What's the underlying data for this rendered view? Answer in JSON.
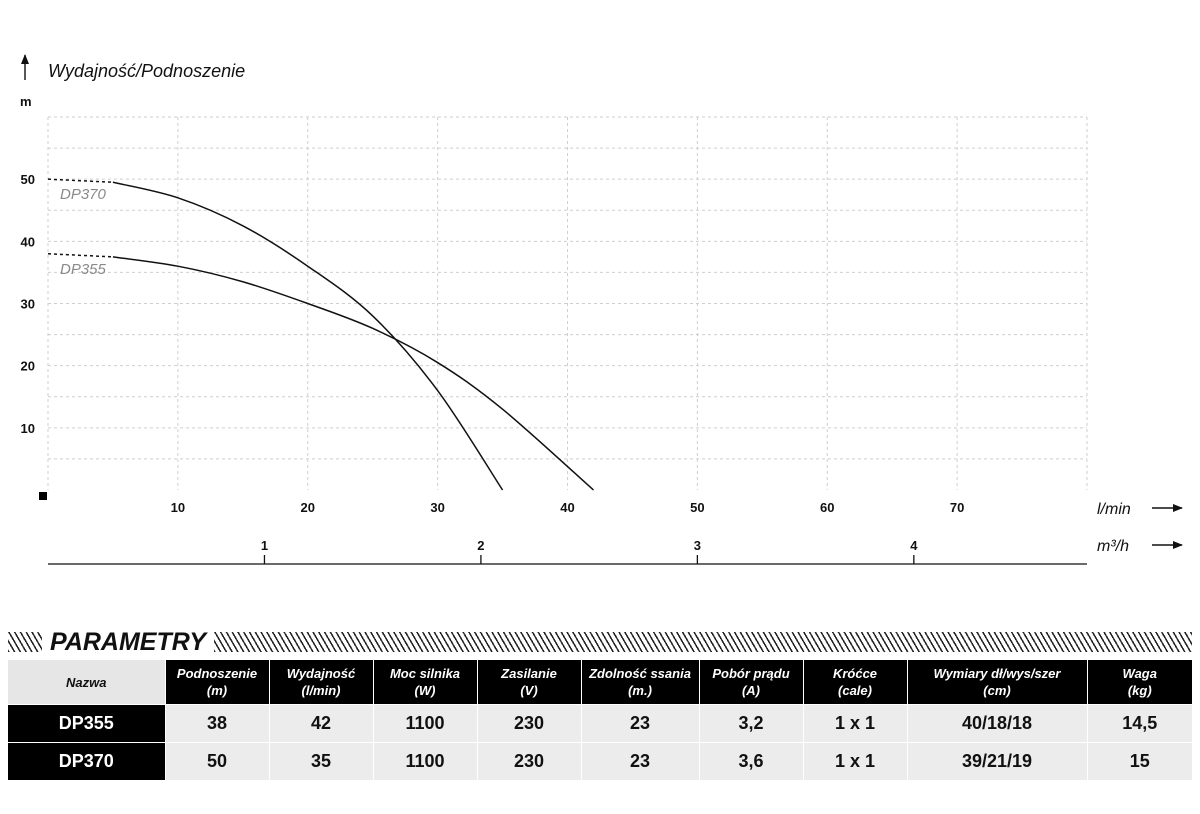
{
  "chart_data": {
    "type": "line",
    "title": "Wydajność/Podnoszenie",
    "ylabel": "m",
    "xlabel": "l/min",
    "x2label": "m³/h",
    "xlim": [
      0,
      80
    ],
    "ylim": [
      0,
      60
    ],
    "x_ticks": [
      10,
      20,
      30,
      40,
      50,
      60,
      70
    ],
    "y_ticks": [
      10,
      20,
      30,
      40,
      50
    ],
    "x2_ticks": [
      1,
      2,
      3,
      4
    ],
    "grid": true,
    "series": [
      {
        "name": "DP370",
        "points": [
          [
            0,
            50
          ],
          [
            5,
            49.5
          ],
          [
            10,
            47
          ],
          [
            15,
            42.5
          ],
          [
            20,
            36
          ],
          [
            25,
            28
          ],
          [
            30,
            16
          ],
          [
            35,
            0
          ]
        ]
      },
      {
        "name": "DP355",
        "points": [
          [
            0,
            38
          ],
          [
            5,
            37.5
          ],
          [
            10,
            36
          ],
          [
            15,
            33.5
          ],
          [
            20,
            30
          ],
          [
            25,
            26
          ],
          [
            30,
            20.5
          ],
          [
            35,
            13
          ],
          [
            42,
            0
          ]
        ]
      }
    ]
  },
  "params": {
    "title": "PARAMETRY",
    "headers": [
      {
        "l1": "Nazwa",
        "l2": ""
      },
      {
        "l1": "Podnoszenie",
        "l2": "(m)"
      },
      {
        "l1": "Wydajność",
        "l2": "(l/min)"
      },
      {
        "l1": "Moc silnika",
        "l2": "(W)"
      },
      {
        "l1": "Zasilanie",
        "l2": "(V)"
      },
      {
        "l1": "Zdolność ssania",
        "l2": "(m.)"
      },
      {
        "l1": "Pobór prądu",
        "l2": "(A)"
      },
      {
        "l1": "Króćce",
        "l2": "(cale)"
      },
      {
        "l1": "Wymiary dł/wys/szer",
        "l2": "(cm)"
      },
      {
        "l1": "Waga",
        "l2": "(kg)"
      }
    ],
    "rows": [
      [
        "DP355",
        "38",
        "42",
        "1100",
        "230",
        "23",
        "3,2",
        "1 x 1",
        "40/18/18",
        "14,5"
      ],
      [
        "DP370",
        "50",
        "35",
        "1100",
        "230",
        "23",
        "3,6",
        "1 x 1",
        "39/21/19",
        "15"
      ]
    ]
  }
}
